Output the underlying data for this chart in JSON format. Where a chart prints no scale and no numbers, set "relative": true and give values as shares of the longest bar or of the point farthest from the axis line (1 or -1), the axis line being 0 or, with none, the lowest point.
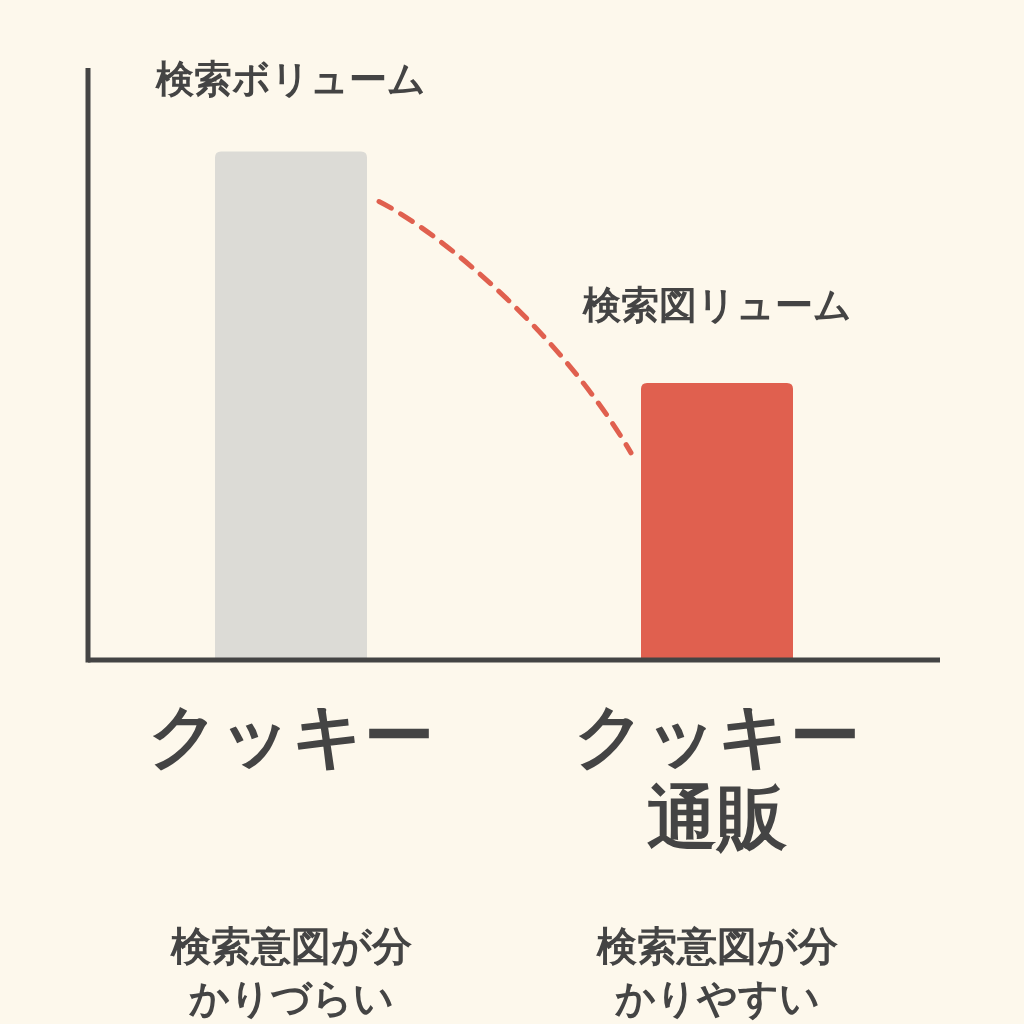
{
  "chart_data": {
    "type": "bar",
    "relative": true,
    "categories": [
      "クッキー",
      "クッキー通販"
    ],
    "values": [
      1,
      0.545
    ],
    "colors": [
      "#dcdbd6",
      "#e0604f"
    ],
    "annotations": [
      {
        "text": "検索ボリューム",
        "x": "クッキー",
        "y": 1
      },
      {
        "text": "検索図リューム",
        "x": "クッキー通販",
        "y": 0.545
      },
      "検索意図が分かりづらい",
      "検索意図が分かりやすい"
    ]
  }
}
